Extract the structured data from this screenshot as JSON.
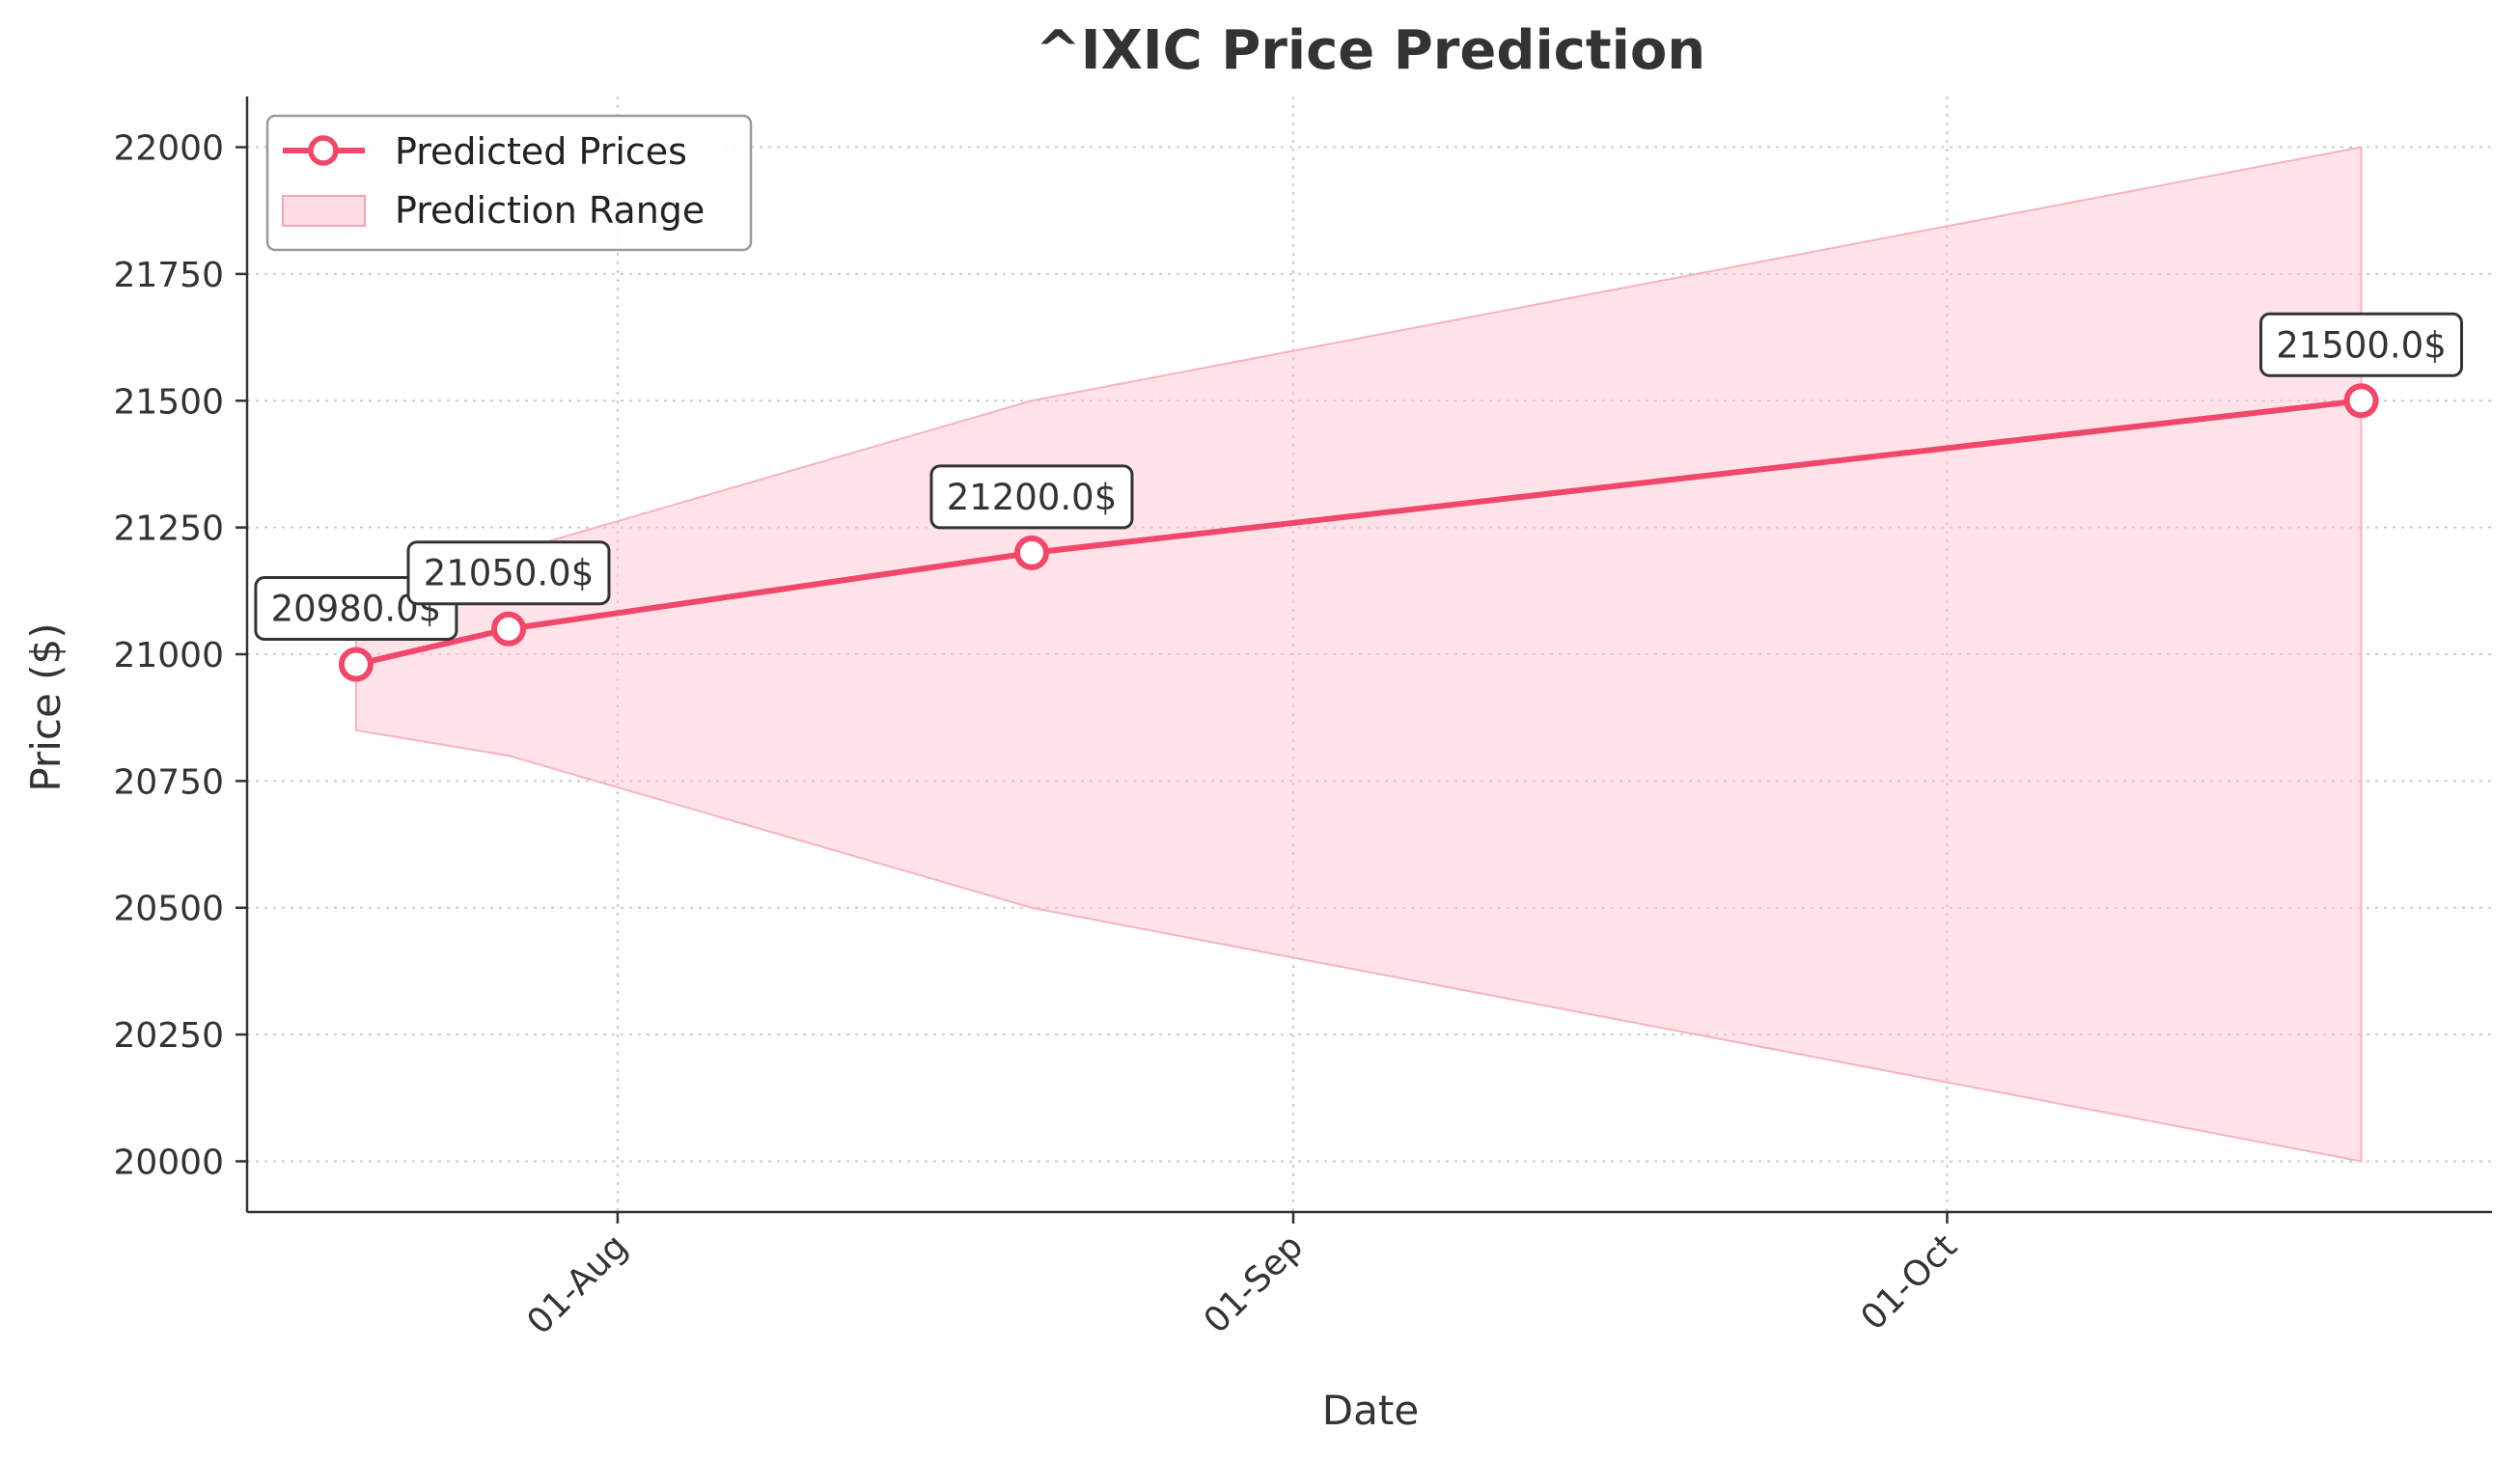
{
  "chart_data": {
    "type": "line",
    "title": "^IXIC Price Prediction",
    "xlabel": "Date",
    "ylabel": "Price ($)",
    "x_ticks": [
      {
        "date": "2025-08-01",
        "label": "01-Aug"
      },
      {
        "date": "2025-09-01",
        "label": "01-Sep"
      },
      {
        "date": "2025-10-01",
        "label": "01-Oct"
      }
    ],
    "y_ticks": [
      20000,
      20250,
      20500,
      20750,
      21000,
      21250,
      21500,
      21750,
      22000
    ],
    "xlim": [
      "2025-07-15",
      "2025-10-26"
    ],
    "ylim": [
      19900,
      22100
    ],
    "grid": true,
    "legend_position": "top-left",
    "series": [
      {
        "name": "Predicted Prices",
        "kind": "line",
        "color": "#f0476a",
        "points": [
          {
            "x": "2025-07-20",
            "y": 20980,
            "label": "20980.0$"
          },
          {
            "x": "2025-07-27",
            "y": 21050,
            "label": "21050.0$"
          },
          {
            "x": "2025-08-20",
            "y": 21200,
            "label": "21200.0$"
          },
          {
            "x": "2025-10-20",
            "y": 21500,
            "label": "21500.0$"
          }
        ]
      },
      {
        "name": "Prediction Range",
        "kind": "band",
        "color": "#ffc0cb",
        "x": [
          "2025-07-20",
          "2025-07-27",
          "2025-08-20",
          "2025-10-20"
        ],
        "lower": [
          20850,
          20800,
          20500,
          20000
        ],
        "upper": [
          21100,
          21200,
          21500,
          22000
        ]
      }
    ]
  }
}
